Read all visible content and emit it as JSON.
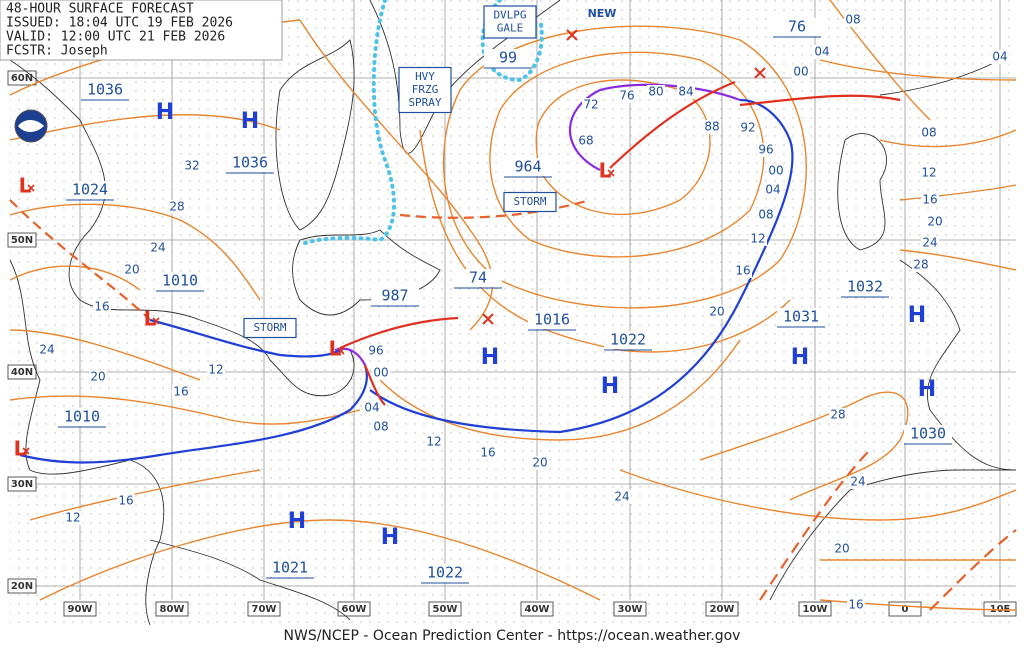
{
  "header": {
    "lines": [
      "48-HOUR SURFACE FORECAST",
      "ISSUED: 18:04 UTC 19 FEB 2026",
      "VALID:  12:00 UTC 21 FEB 2026",
      "FCSTR:  Joseph"
    ]
  },
  "lat_labels": [
    "60N",
    "50N",
    "40N",
    "30N",
    "20N"
  ],
  "lon_labels": [
    "90W",
    "80W",
    "70W",
    "60W",
    "50W",
    "40W",
    "30W",
    "20W",
    "10W",
    "0",
    "10E"
  ],
  "highs": [
    "H",
    "H",
    "H",
    "H",
    "H",
    "H",
    "H",
    "H",
    "H"
  ],
  "lows": [
    "L",
    "L",
    "L",
    "L",
    "L"
  ],
  "pressures": [
    "1036",
    "1036",
    "1024",
    "1010",
    "1010",
    "1021",
    "1022",
    "987",
    "74",
    "1016",
    "1022",
    "964",
    "99",
    "76",
    "1032",
    "1031",
    "1030"
  ],
  "isobar_labels": [
    "08",
    "04",
    "00",
    "04",
    "08",
    "12",
    "16",
    "20",
    "24",
    "28",
    "72",
    "76",
    "80",
    "84",
    "88",
    "92",
    "68",
    "96",
    "00",
    "04",
    "08",
    "12",
    "16",
    "20",
    "32",
    "28",
    "24",
    "20",
    "16",
    "24",
    "20",
    "16",
    "12",
    "96",
    "00",
    "04",
    "08",
    "12",
    "16",
    "20",
    "24",
    "28",
    "24",
    "20",
    "16",
    "16",
    "12"
  ],
  "boxes": [
    {
      "lines": [
        "DVLPG",
        "GALE"
      ]
    },
    {
      "lines": [
        "HVY",
        "FRZG",
        "SPRAY"
      ]
    },
    {
      "lines": [
        "STORM"
      ]
    },
    {
      "lines": [
        "STORM"
      ]
    }
  ],
  "new_label": "NEW",
  "footer": "NWS/NCEP - Ocean Prediction Center - https://ocean.weather.gov"
}
